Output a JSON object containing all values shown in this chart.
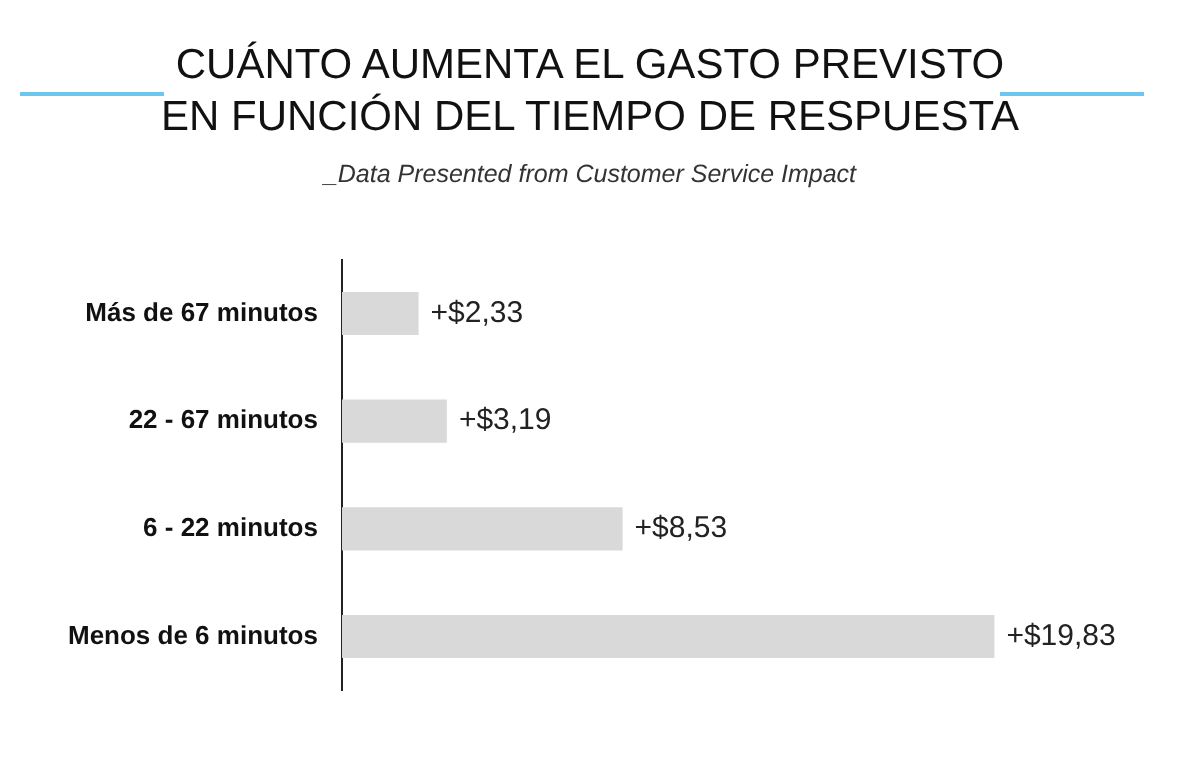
{
  "chart_data": {
    "type": "bar",
    "orientation": "horizontal",
    "title": "CUÁNTO AUMENTA EL GASTO PREVISTO\nEN FUNCIÓN DEL TIEMPO DE RESPUESTA",
    "subtitle": "_Data Presented from Customer Service Impact",
    "categories": [
      "Más de 67 minutos",
      "22 - 67 minutos",
      "6 - 22 minutos",
      "Menos de 6 minutos"
    ],
    "values": [
      2.33,
      3.19,
      8.53,
      19.83
    ],
    "value_labels": [
      "+$2,33",
      "+$3,19",
      "+$8,53",
      "+$19,83"
    ],
    "color": "#d9d9d9",
    "legend": false
  }
}
